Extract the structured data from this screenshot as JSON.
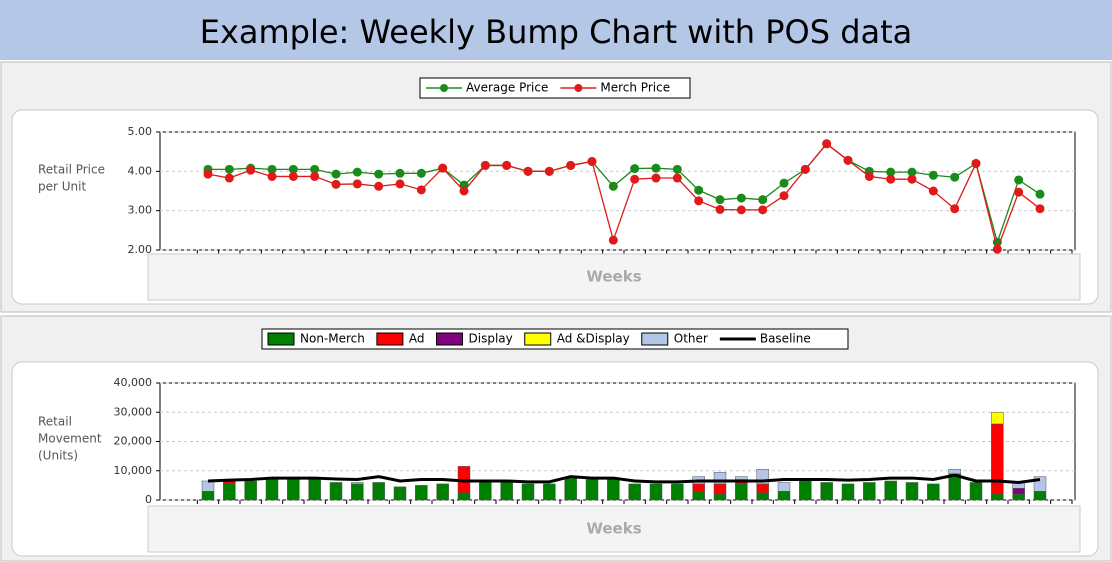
{
  "page_title": "Example:   Weekly Bump Chart with POS data",
  "chart_data": [
    {
      "type": "line",
      "ylabel": [
        "Retail Price",
        "per Unit"
      ],
      "xlabel": "Weeks",
      "ylim": [
        2,
        5
      ],
      "yticks": [
        {
          "value": 2,
          "label": "2.00"
        },
        {
          "value": 3,
          "label": "3.00"
        },
        {
          "value": 4,
          "label": "4.00"
        },
        {
          "value": 5,
          "label": "5.00"
        }
      ],
      "grid": true,
      "series": [
        {
          "name": "Average Price",
          "color": "#1a8a1a",
          "values": [
            4.05,
            4.05,
            4.08,
            4.05,
            4.05,
            4.05,
            3.93,
            3.98,
            3.93,
            3.95,
            3.95,
            4.08,
            3.65,
            4.15,
            4.15,
            4.0,
            4.0,
            4.15,
            4.25,
            3.62,
            4.07,
            4.08,
            4.05,
            3.52,
            3.28,
            3.32,
            3.28,
            3.7,
            4.05,
            4.7,
            4.28,
            4.0,
            3.98,
            3.98,
            3.9,
            3.85,
            4.2,
            2.2,
            3.78,
            3.42
          ]
        },
        {
          "name": "Merch Price",
          "color": "#e01a1a",
          "values": [
            3.93,
            3.83,
            4.03,
            3.87,
            3.87,
            3.87,
            3.67,
            3.68,
            3.62,
            3.68,
            3.53,
            4.08,
            3.5,
            4.15,
            4.15,
            4.0,
            4.0,
            4.15,
            4.25,
            2.25,
            3.8,
            3.83,
            3.83,
            3.25,
            3.03,
            3.02,
            3.02,
            3.38,
            4.05,
            4.7,
            4.28,
            3.87,
            3.8,
            3.8,
            3.5,
            3.05,
            4.2,
            2.02,
            3.47,
            3.05
          ]
        }
      ]
    },
    {
      "type": "bar",
      "ylabel": [
        "Retail",
        "Movement",
        "(Units)"
      ],
      "xlabel": "Weeks",
      "ylim": [
        0,
        40000
      ],
      "yticks": [
        0,
        {
          "value": 10000,
          "label": "10,000"
        },
        {
          "value": 20000,
          "label": "20,000"
        },
        {
          "value": 30000,
          "label": "30,000"
        },
        {
          "value": 40000,
          "label": "40,000"
        }
      ],
      "grid": true,
      "stacked": true,
      "series": [
        {
          "name": "Non-Merch",
          "color": "#008000",
          "values": [
            3000,
            5500,
            6500,
            7000,
            7000,
            7000,
            6000,
            5500,
            6000,
            4500,
            5000,
            5500,
            2500,
            6500,
            6500,
            5500,
            5500,
            7500,
            7000,
            7000,
            5500,
            5500,
            5500,
            3000,
            2000,
            5500,
            2500,
            3000,
            6500,
            6000,
            5500,
            6000,
            6500,
            6000,
            5500,
            9000,
            6000,
            2000,
            2000,
            3000
          ]
        },
        {
          "name": "Ad",
          "color": "#ff0000",
          "values": [
            0,
            1000,
            0,
            0,
            0,
            0,
            0,
            0,
            0,
            0,
            0,
            0,
            9000,
            0,
            0,
            0,
            0,
            0,
            0,
            0,
            0,
            0,
            0,
            2500,
            3500,
            1500,
            3000,
            0,
            0,
            0,
            0,
            0,
            0,
            0,
            0,
            0,
            0,
            24000,
            0,
            0
          ]
        },
        {
          "name": "Display",
          "color": "#800080",
          "values": [
            0,
            0,
            0,
            0,
            0,
            0,
            0,
            0,
            0,
            0,
            0,
            0,
            0,
            0,
            0,
            0,
            0,
            0,
            0,
            0,
            0,
            0,
            0,
            0,
            0,
            0,
            0,
            0,
            0,
            0,
            0,
            0,
            0,
            0,
            0,
            0,
            0,
            0,
            2000,
            0
          ]
        },
        {
          "name": "Ad &Display",
          "color": "#ffff00",
          "values": [
            0,
            0,
            0,
            0,
            0,
            0,
            0,
            0,
            0,
            0,
            0,
            0,
            0,
            0,
            0,
            0,
            0,
            0,
            0,
            0,
            0,
            0,
            0,
            0,
            0,
            0,
            0,
            0,
            0,
            0,
            0,
            0,
            0,
            0,
            0,
            0,
            0,
            4000,
            0,
            0
          ]
        },
        {
          "name": "Other",
          "color": "#b4c6e7",
          "values": [
            3500,
            0,
            0,
            0,
            0,
            0,
            0,
            500,
            0,
            0,
            0,
            0,
            0,
            0,
            0,
            0,
            0,
            0,
            0,
            0,
            0,
            0,
            0,
            2500,
            4000,
            1000,
            5000,
            3000,
            0,
            0,
            0,
            0,
            0,
            0,
            0,
            1500,
            0,
            0,
            2000,
            5000
          ]
        },
        {
          "name": "Baseline",
          "color": "#000000",
          "type": "line",
          "values": [
            6500,
            6800,
            7000,
            7500,
            7500,
            7500,
            7200,
            7000,
            8000,
            6500,
            7000,
            7000,
            6500,
            6500,
            6500,
            6200,
            6200,
            8000,
            7500,
            7500,
            6500,
            6200,
            6200,
            6500,
            6500,
            6500,
            6500,
            7000,
            7000,
            7000,
            6800,
            7000,
            7500,
            7500,
            7000,
            8500,
            6500,
            6500,
            6000,
            7000
          ]
        }
      ]
    }
  ]
}
